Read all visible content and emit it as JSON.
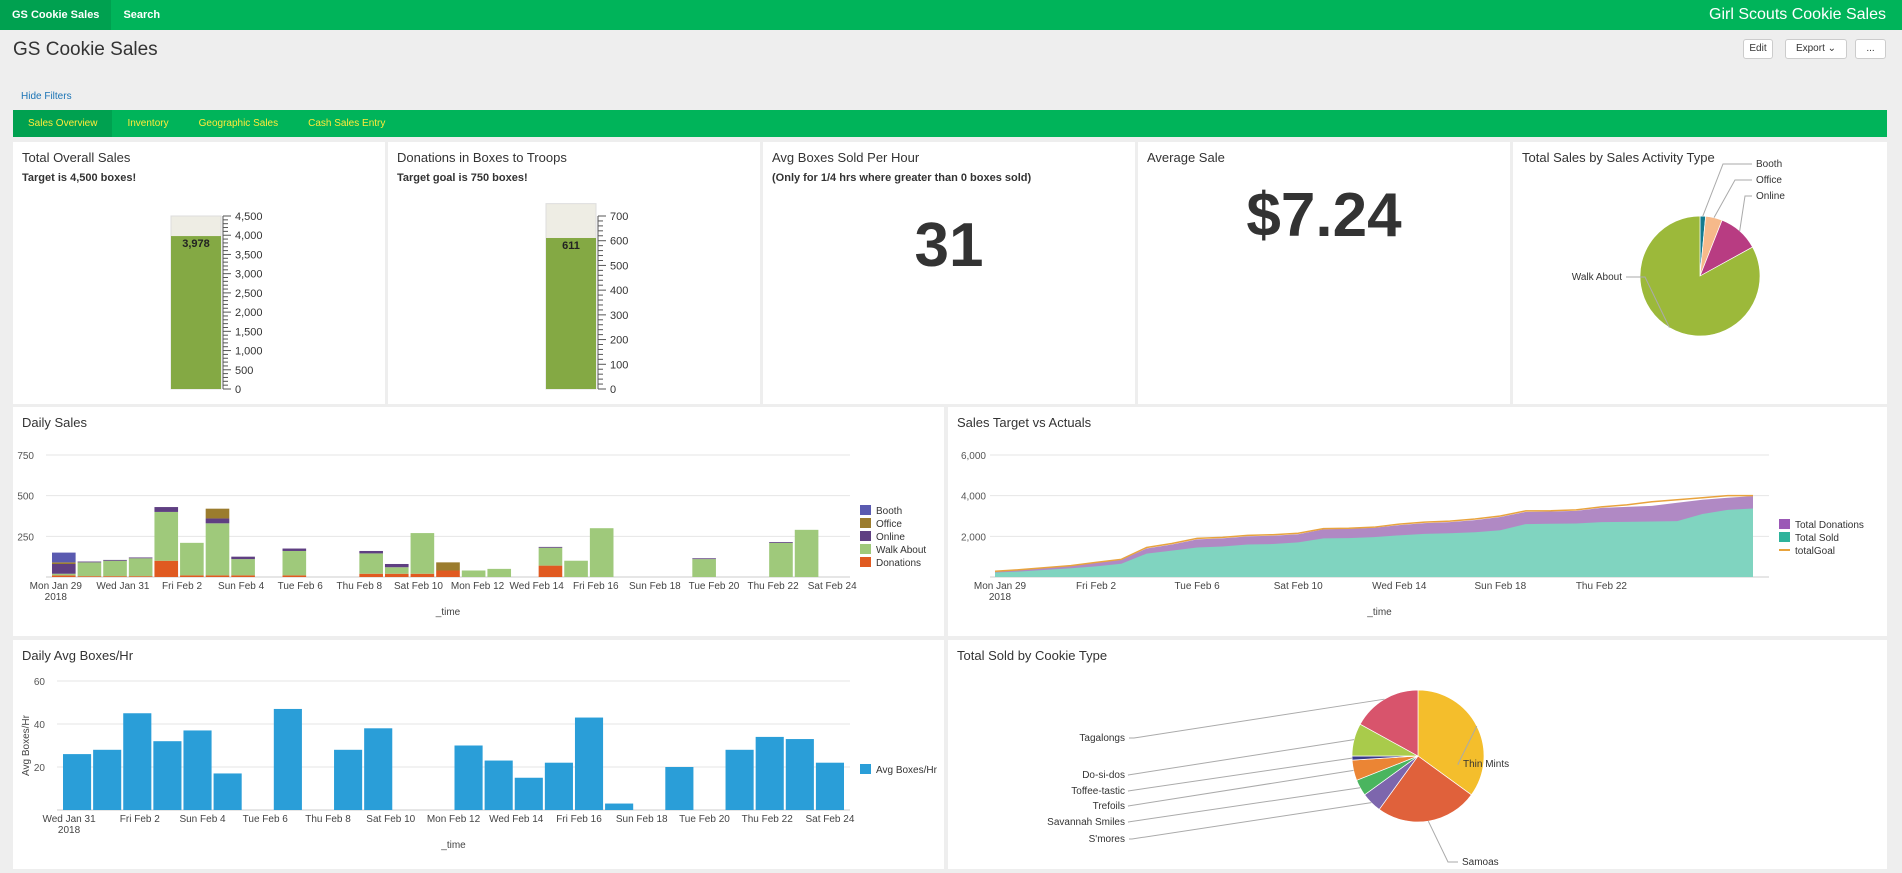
{
  "topbar": {
    "app_label": "GS Cookie Sales",
    "search_label": "Search",
    "brand": "Girl Scouts Cookie Sales"
  },
  "page": {
    "title": "GS Cookie Sales",
    "edit_label": "Edit",
    "export_label": "Export",
    "more_label": "...",
    "hide_filters": "Hide Filters"
  },
  "tabs": [
    {
      "label": "Sales Overview"
    },
    {
      "label": "Inventory"
    },
    {
      "label": "Geographic Sales"
    },
    {
      "label": "Cash Sales Entry"
    }
  ],
  "colors": {
    "brand": "#00b45a",
    "brand_dark": "#00a150",
    "tab_text": "#ffea3a",
    "gauge_fill": "#84a944",
    "gauge_empty": "#eeede4",
    "teal": "#80d4c0",
    "teal_dark": "#2eb39b",
    "purple": "#b089c4",
    "orange": "#e8a33d",
    "bar_blue": "#2a9ed8"
  },
  "panels": {
    "total_sales": {
      "title": "Total Overall Sales",
      "subtitle": "Target is 4,500 boxes!",
      "value_label": "3,978"
    },
    "donations": {
      "title": "Donations in Boxes to Troops",
      "subtitle": "Target goal is 750 boxes!",
      "value_label": "611"
    },
    "avg_boxes": {
      "title": "Avg Boxes Sold Per Hour",
      "subtitle": "(Only for 1/4 hrs where greater than 0 boxes sold)",
      "value": "31"
    },
    "avg_sale": {
      "title": "Average Sale",
      "value": "$7.24"
    },
    "activity": {
      "title": "Total Sales by Sales Activity Type"
    },
    "daily_sales": {
      "title": "Daily Sales"
    },
    "target_actuals": {
      "title": "Sales Target vs Actuals"
    },
    "daily_avg": {
      "title": "Daily Avg Boxes/Hr"
    },
    "cookie_type": {
      "title": "Total Sold by Cookie Type"
    }
  },
  "chart_data": [
    {
      "type": "gauge",
      "id": "total_sales",
      "value": 3978,
      "value_label": "3,978",
      "range": [
        0,
        4500
      ],
      "ticks": [
        "4,500",
        "4,000",
        "3,500",
        "3,000",
        "2,500",
        "2,000",
        "1,500",
        "1,000",
        "500",
        "0"
      ]
    },
    {
      "type": "gauge",
      "id": "donations",
      "value": 611,
      "value_label": "611",
      "range": [
        0,
        750
      ],
      "ticks": [
        "700",
        "600",
        "500",
        "400",
        "300",
        "200",
        "100",
        "0"
      ]
    },
    {
      "type": "pie",
      "id": "activity",
      "labels": [
        "Booth",
        "Office",
        "Online",
        "Walk About"
      ],
      "values": [
        1.5,
        4.5,
        11,
        83
      ],
      "colors": [
        "#137b8f",
        "#f6b98a",
        "#b83c82",
        "#9cb93a"
      ]
    },
    {
      "type": "bar",
      "id": "daily_sales",
      "stacked": true,
      "x_label": "_time",
      "ylim": [
        0,
        750
      ],
      "y_ticks": [
        "750",
        "500",
        "250"
      ],
      "tick_labels": [
        "Mon Jan 29\n2018",
        "Wed Jan 31",
        "Fri Feb 2",
        "Sun Feb 4",
        "Tue Feb 6",
        "Thu Feb 8",
        "Sat Feb 10",
        "Mon Feb 12",
        "Wed Feb 14",
        "Fri Feb 16",
        "Sun Feb 18",
        "Tue Feb 20",
        "Thu Feb 22",
        "Sat Feb 24"
      ],
      "series": [
        {
          "name": "Booth",
          "color": "#5a5ab0",
          "values": [
            60,
            0,
            0,
            0,
            0,
            0,
            0,
            0,
            0,
            0,
            0,
            0,
            0,
            0,
            0,
            0,
            0,
            0,
            0,
            0,
            0,
            0,
            0,
            0,
            0,
            0,
            0,
            0,
            0,
            0,
            0
          ]
        },
        {
          "name": "Office",
          "color": "#9b7c2e",
          "values": [
            10,
            0,
            0,
            0,
            0,
            0,
            60,
            0,
            0,
            0,
            0,
            0,
            0,
            0,
            0,
            50,
            0,
            0,
            0,
            0,
            0,
            0,
            0,
            0,
            0,
            0,
            0,
            0,
            0,
            0,
            0
          ]
        },
        {
          "name": "Online",
          "color": "#5f3f82",
          "values": [
            60,
            5,
            5,
            5,
            30,
            0,
            30,
            15,
            0,
            15,
            0,
            0,
            15,
            20,
            0,
            0,
            0,
            0,
            0,
            5,
            0,
            0,
            0,
            0,
            0,
            5,
            0,
            0,
            5,
            0,
            0
          ]
        },
        {
          "name": "Walk About",
          "color": "#9fc97b",
          "values": [
            10,
            85,
            95,
            110,
            300,
            200,
            320,
            100,
            0,
            150,
            0,
            0,
            125,
            40,
            250,
            0,
            40,
            50,
            0,
            110,
            100,
            300,
            0,
            0,
            0,
            110,
            0,
            0,
            210,
            290,
            0
          ]
        },
        {
          "name": "Donations",
          "color": "#e05a21",
          "values": [
            10,
            5,
            5,
            5,
            100,
            10,
            10,
            10,
            0,
            10,
            0,
            0,
            20,
            20,
            20,
            40,
            0,
            0,
            0,
            70,
            0,
            0,
            0,
            0,
            0,
            0,
            0,
            0,
            0,
            0,
            0
          ]
        }
      ]
    },
    {
      "type": "area",
      "id": "target_actuals",
      "x_label": "_time",
      "ylim": [
        0,
        6000
      ],
      "y_ticks": [
        "6,000",
        "4,000",
        "2,000"
      ],
      "tick_labels": [
        "Mon Jan 29\n2018",
        "Fri Feb 2",
        "Tue Feb 6",
        "Sat Feb 10",
        "Wed Feb 14",
        "Sun Feb 18",
        "Thu Feb 22"
      ],
      "series": [
        {
          "name": "Total Donations",
          "color": "#9b59b6",
          "values": [
            280,
            350,
            450,
            550,
            700,
            850,
            1400,
            1600,
            1850,
            1900,
            2000,
            2030,
            2100,
            2350,
            2370,
            2420,
            2550,
            2650,
            2700,
            2800,
            2950,
            3200,
            3220,
            3250,
            3400,
            3450,
            3500,
            3650,
            3800,
            3900,
            3978
          ]
        },
        {
          "name": "Total Sold",
          "color": "#2eb39b",
          "values": [
            220,
            270,
            350,
            430,
            520,
            650,
            1150,
            1300,
            1450,
            1500,
            1600,
            1620,
            1700,
            1900,
            1910,
            1960,
            2050,
            2120,
            2150,
            2200,
            2300,
            2600,
            2620,
            2630,
            2700,
            2710,
            2730,
            2750,
            3100,
            3300,
            3367
          ]
        },
        {
          "name": "totalGoal",
          "color": "#e8a33d",
          "values": [
            280,
            360,
            460,
            560,
            720,
            870,
            1450,
            1650,
            1900,
            1950,
            2050,
            2080,
            2150,
            2380,
            2400,
            2450,
            2600,
            2700,
            2750,
            2850,
            3000,
            3250,
            3260,
            3300,
            3450,
            3550,
            3700,
            3800,
            3900,
            4000,
            4000
          ]
        }
      ]
    },
    {
      "type": "bar",
      "id": "daily_avg",
      "x_label": "_time",
      "ylabel": "Avg Boxes/Hr",
      "ylim": [
        0,
        60
      ],
      "y_ticks": [
        "60",
        "40",
        "20"
      ],
      "tick_labels": [
        "Wed Jan 31\n2018",
        "Fri Feb 2",
        "Sun Feb 4",
        "Tue Feb 6",
        "Thu Feb 8",
        "Sat Feb 10",
        "Mon Feb 12",
        "Wed Feb 14",
        "Fri Feb 16",
        "Sun Feb 18",
        "Tue Feb 20",
        "Thu Feb 22",
        "Sat Feb 24"
      ],
      "series": [
        {
          "name": "Avg Boxes/Hr",
          "color": "#2a9ed8",
          "values": [
            26,
            28,
            45,
            32,
            37,
            17,
            0,
            47,
            0,
            28,
            38,
            0,
            0,
            30,
            23,
            15,
            22,
            43,
            3,
            0,
            20,
            0,
            28,
            34,
            33,
            22
          ]
        }
      ]
    },
    {
      "type": "pie",
      "id": "cookie_type",
      "labels": [
        "Thin Mints",
        "Samoas",
        "S'mores",
        "Savannah Smiles",
        "Trefoils",
        "Toffee-tastic",
        "Do-si-dos",
        "Tagalongs"
      ],
      "values": [
        35,
        25,
        5,
        4,
        5,
        1,
        8,
        17
      ],
      "colors": [
        "#f4be2c",
        "#e0613b",
        "#7d66ad",
        "#4ab55f",
        "#eb8534",
        "#3b3b8a",
        "#a9cb4b",
        "#d8546c"
      ]
    }
  ]
}
